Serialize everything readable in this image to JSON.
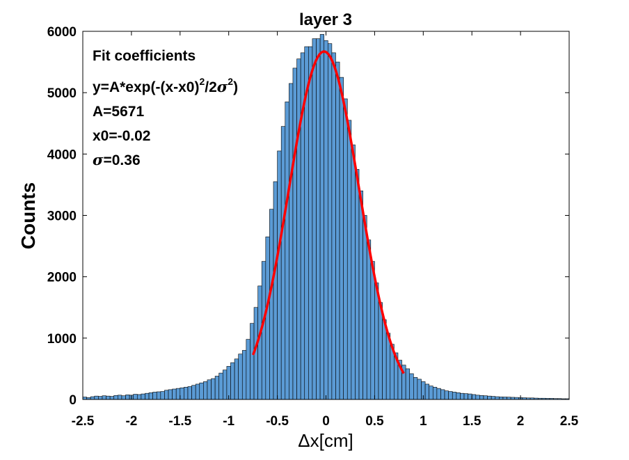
{
  "chart_data": {
    "type": "bar",
    "title": "layer 3",
    "xlabel": "Δx[cm]",
    "ylabel": "Counts",
    "xlim": [
      -2.5,
      2.5
    ],
    "ylim": [
      0,
      6000
    ],
    "xticks": [
      "-2.5",
      "-2",
      "-1.5",
      "-1",
      "-0.5",
      "0",
      "0.5",
      "1",
      "1.5",
      "2",
      "2.5"
    ],
    "yticks": [
      "0",
      "1000",
      "2000",
      "3000",
      "4000",
      "5000",
      "6000"
    ],
    "bar_color": "#5b9bd5",
    "fit_color": "#ff0000",
    "bin_width": 0.04,
    "x": [
      -2.48,
      -2.44,
      -2.4,
      -2.36,
      -2.32,
      -2.28,
      -2.24,
      -2.2,
      -2.16,
      -2.12,
      -2.08,
      -2.04,
      -2.0,
      -1.96,
      -1.92,
      -1.88,
      -1.84,
      -1.8,
      -1.76,
      -1.72,
      -1.68,
      -1.64,
      -1.6,
      -1.56,
      -1.52,
      -1.48,
      -1.44,
      -1.4,
      -1.36,
      -1.32,
      -1.28,
      -1.24,
      -1.2,
      -1.16,
      -1.12,
      -1.08,
      -1.04,
      -1.0,
      -0.96,
      -0.92,
      -0.88,
      -0.84,
      -0.8,
      -0.76,
      -0.72,
      -0.68,
      -0.64,
      -0.6,
      -0.56,
      -0.52,
      -0.48,
      -0.44,
      -0.4,
      -0.36,
      -0.32,
      -0.28,
      -0.24,
      -0.2,
      -0.16,
      -0.12,
      -0.08,
      -0.04,
      0.0,
      0.04,
      0.08,
      0.12,
      0.16,
      0.2,
      0.24,
      0.28,
      0.32,
      0.36,
      0.4,
      0.44,
      0.48,
      0.52,
      0.56,
      0.6,
      0.64,
      0.68,
      0.72,
      0.76,
      0.8,
      0.84,
      0.88,
      0.92,
      0.96,
      1.0,
      1.04,
      1.08,
      1.12,
      1.16,
      1.2,
      1.24,
      1.28,
      1.32,
      1.36,
      1.4,
      1.44,
      1.48,
      1.52,
      1.56,
      1.6,
      1.64,
      1.68,
      1.72,
      1.76,
      1.8,
      1.84,
      1.88,
      1.92,
      1.96,
      2.0,
      2.04,
      2.08,
      2.12,
      2.16,
      2.2,
      2.24,
      2.28,
      2.32,
      2.36,
      2.4,
      2.44,
      2.48
    ],
    "values": [
      40,
      30,
      45,
      55,
      50,
      60,
      55,
      50,
      65,
      70,
      60,
      75,
      70,
      85,
      80,
      90,
      100,
      110,
      120,
      125,
      130,
      150,
      160,
      170,
      180,
      190,
      200,
      210,
      230,
      250,
      270,
      290,
      320,
      340,
      380,
      430,
      480,
      540,
      600,
      660,
      740,
      800,
      980,
      1240,
      1500,
      1850,
      2250,
      2650,
      3100,
      3550,
      4050,
      4450,
      4850,
      5150,
      5400,
      5550,
      5650,
      5750,
      5750,
      5880,
      5880,
      5950,
      5850,
      5800,
      5650,
      5500,
      5250,
      4900,
      4550,
      4150,
      3750,
      3400,
      3000,
      2600,
      2250,
      1900,
      1580,
      1300,
      1080,
      900,
      760,
      640,
      560,
      500,
      420,
      360,
      330,
      290,
      250,
      220,
      200,
      180,
      160,
      140,
      130,
      120,
      110,
      100,
      95,
      90,
      80,
      70,
      65,
      60,
      55,
      50,
      45,
      42,
      40,
      38,
      35,
      33,
      30,
      28,
      25,
      25,
      22,
      20,
      20,
      18,
      18,
      15,
      15,
      12,
      12
    ],
    "fit": {
      "A": 5671,
      "x0": -0.02,
      "sigma": 0.36,
      "x_range": [
        -0.75,
        0.8
      ]
    }
  },
  "annotation": {
    "heading": "Fit coefficients",
    "formula_prefix": "y=A*exp(-(x-x0)",
    "formula_sup1": "2",
    "formula_mid": "/2",
    "formula_sigma": "σ",
    "formula_sup2": "2",
    "formula_suffix": ")",
    "a_line": "A=5671",
    "x0_line": "x0=-0.02",
    "sigma_symbol": "σ",
    "sigma_value": "=0.36"
  }
}
